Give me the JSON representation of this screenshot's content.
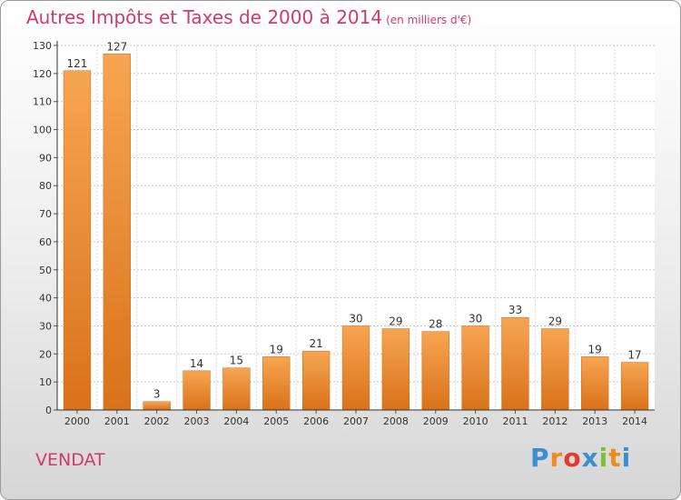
{
  "chart_data": {
    "type": "bar",
    "title": "Autres Impôts et Taxes de 2000 à 2014",
    "subtitle": "(en milliers d'€)",
    "categories": [
      "2000",
      "2001",
      "2002",
      "2003",
      "2004",
      "2005",
      "2006",
      "2007",
      "2008",
      "2009",
      "2010",
      "2011",
      "2012",
      "2013",
      "2014"
    ],
    "values": [
      121,
      127,
      3,
      14,
      15,
      19,
      21,
      30,
      29,
      28,
      30,
      33,
      29,
      19,
      17
    ],
    "ylim": [
      0,
      130
    ],
    "yticks": [
      0,
      10,
      20,
      30,
      40,
      50,
      60,
      70,
      80,
      90,
      100,
      110,
      120,
      130
    ],
    "grid": true,
    "bar_color": "#f08a24",
    "title_color": "#d03a6e"
  },
  "commune": "VENDAT",
  "logo": {
    "letters": [
      "P",
      "r",
      "o",
      "x",
      "i",
      "t",
      "i"
    ],
    "colors": [
      "#3a8fd0",
      "#f08a24",
      "#e23a2e",
      "#3a8fd0",
      "#7cbf3a",
      "#f08a24",
      "#3a8fd0"
    ]
  }
}
